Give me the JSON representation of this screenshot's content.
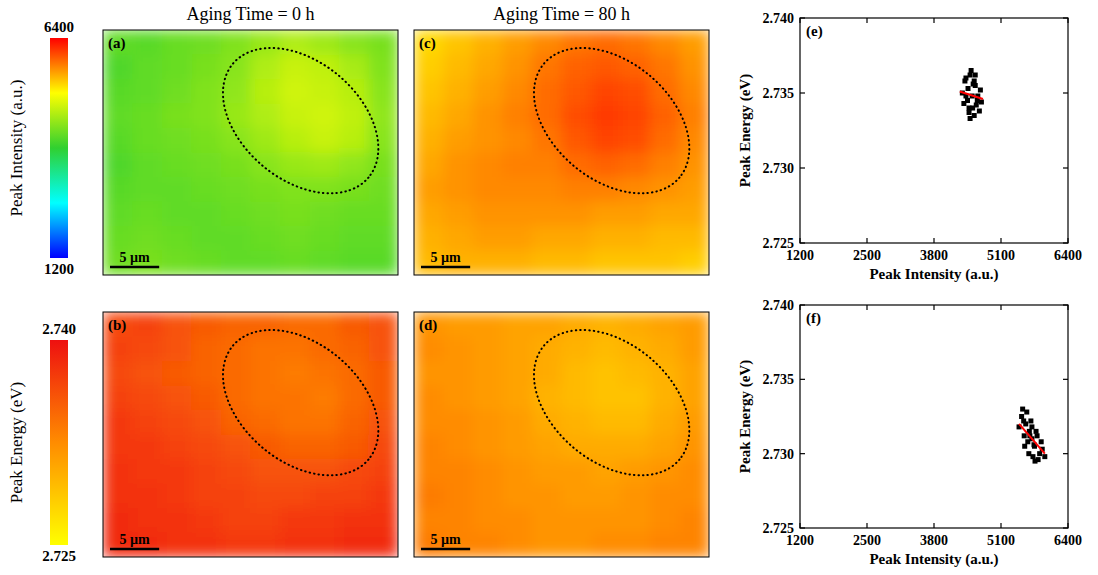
{
  "chart_data": [
    {
      "type": "colorbar",
      "label": "Peak Intensity (a.u.)",
      "zlim": [
        1200,
        6400
      ],
      "zticks": [
        1200,
        6400
      ],
      "colors": [
        "#0000ff",
        "#00ffff",
        "#30d030",
        "#ffff00",
        "#ff0000"
      ]
    },
    {
      "type": "colorbar",
      "label": "Peak Energy (eV)",
      "zlim": [
        2.725,
        2.74
      ],
      "zticks": [
        2.725,
        {
          "value": 2.74,
          "label": "2.740"
        }
      ],
      "colors": [
        "#ffff00",
        "#ff8c00",
        "#ee1010"
      ]
    },
    {
      "type": "heatmap",
      "label": "(a)",
      "title": "Aging Time = 0 h",
      "zlim": [
        1200,
        6400
      ],
      "colors": [
        "#0000ff",
        "#00ffff",
        "#30d030",
        "#ffff00",
        "#ff0000"
      ],
      "scale_bar": {
        "label": "5 µm",
        "length": 5
      },
      "width_um": 30,
      "cells": [
        [
          4100,
          4050,
          4150,
          4200,
          4300,
          4450,
          4600,
          4500,
          4350,
          4250
        ],
        [
          4000,
          4100,
          4150,
          4250,
          4350,
          4600,
          4750,
          4700,
          4550,
          4300
        ],
        [
          4050,
          4100,
          4200,
          4300,
          4400,
          4650,
          4800,
          4750,
          4650,
          4350
        ],
        [
          4100,
          4150,
          4250,
          4300,
          4450,
          4600,
          4750,
          4800,
          4700,
          4400
        ],
        [
          4050,
          4150,
          4200,
          4250,
          4350,
          4500,
          4650,
          4750,
          4650,
          4350
        ],
        [
          4000,
          4100,
          4150,
          4200,
          4250,
          4350,
          4450,
          4500,
          4400,
          4250
        ],
        [
          4050,
          4100,
          4100,
          4150,
          4200,
          4250,
          4300,
          4300,
          4250,
          4200
        ],
        [
          4100,
          4150,
          4100,
          4100,
          4150,
          4200,
          4250,
          4200,
          4150,
          4150
        ],
        [
          4150,
          4200,
          4150,
          4100,
          4100,
          4150,
          4200,
          4150,
          4100,
          4100
        ],
        [
          4200,
          4250,
          4200,
          4150,
          4100,
          4100,
          4150,
          4100,
          4050,
          4050
        ]
      ]
    },
    {
      "type": "heatmap",
      "label": "(b)",
      "zlim": [
        2.725,
        2.74
      ],
      "colors": [
        "#ffff00",
        "#ff8c00",
        "#ee1010"
      ],
      "scale_bar": {
        "label": "5 µm",
        "length": 5
      },
      "width_um": 30,
      "cells": [
        [
          2.7365,
          2.737,
          2.736,
          2.7355,
          2.735,
          2.735,
          2.7345,
          2.7345,
          2.7355,
          2.736
        ],
        [
          2.737,
          2.7365,
          2.736,
          2.735,
          2.7345,
          2.734,
          2.734,
          2.7345,
          2.735,
          2.736
        ],
        [
          2.7365,
          2.736,
          2.7355,
          2.735,
          2.7345,
          2.734,
          2.7335,
          2.734,
          2.7345,
          2.7355
        ],
        [
          2.737,
          2.7365,
          2.736,
          2.7355,
          2.7345,
          2.734,
          2.734,
          2.7335,
          2.7345,
          2.7355
        ],
        [
          2.7375,
          2.737,
          2.7365,
          2.736,
          2.735,
          2.7345,
          2.734,
          2.734,
          2.735,
          2.736
        ],
        [
          2.7375,
          2.7375,
          2.737,
          2.7365,
          2.736,
          2.7355,
          2.735,
          2.735,
          2.7355,
          2.7365
        ],
        [
          2.738,
          2.7375,
          2.7375,
          2.737,
          2.7365,
          2.736,
          2.736,
          2.736,
          2.7365,
          2.737
        ],
        [
          2.738,
          2.738,
          2.7375,
          2.737,
          2.737,
          2.7365,
          2.7365,
          2.737,
          2.737,
          2.7375
        ],
        [
          2.7385,
          2.738,
          2.738,
          2.7375,
          2.737,
          2.737,
          2.7375,
          2.7375,
          2.738,
          2.738
        ],
        [
          2.7385,
          2.7385,
          2.738,
          2.738,
          2.7375,
          2.7375,
          2.738,
          2.738,
          2.7385,
          2.7385
        ]
      ]
    },
    {
      "type": "heatmap",
      "label": "(c)",
      "title": "Aging Time = 80 h",
      "zlim": [
        1200,
        6400
      ],
      "colors": [
        "#0000ff",
        "#00ffff",
        "#30d030",
        "#ffff00",
        "#ff0000"
      ],
      "scale_bar": {
        "label": "5 µm",
        "length": 5
      },
      "width_um": 30,
      "cells": [
        [
          5300,
          5400,
          5500,
          5600,
          5700,
          5800,
          5850,
          5800,
          5700,
          5600
        ],
        [
          5350,
          5450,
          5550,
          5650,
          5800,
          5900,
          5950,
          5900,
          5800,
          5650
        ],
        [
          5400,
          5500,
          5600,
          5700,
          5850,
          5950,
          6050,
          6000,
          5850,
          5700
        ],
        [
          5450,
          5550,
          5650,
          5750,
          5850,
          6000,
          6100,
          6050,
          5900,
          5750
        ],
        [
          5500,
          5600,
          5650,
          5700,
          5800,
          5950,
          6050,
          6000,
          5850,
          5700
        ],
        [
          5550,
          5650,
          5700,
          5750,
          5750,
          5850,
          5900,
          5850,
          5750,
          5650
        ],
        [
          5600,
          5650,
          5700,
          5700,
          5700,
          5750,
          5750,
          5700,
          5650,
          5600
        ],
        [
          5550,
          5600,
          5650,
          5650,
          5650,
          5650,
          5600,
          5600,
          5550,
          5550
        ],
        [
          5500,
          5550,
          5600,
          5600,
          5550,
          5550,
          5500,
          5500,
          5450,
          5450
        ],
        [
          5450,
          5500,
          5500,
          5500,
          5450,
          5450,
          5400,
          5400,
          5400,
          5350
        ]
      ]
    },
    {
      "type": "heatmap",
      "label": "(d)",
      "zlim": [
        2.725,
        2.74
      ],
      "colors": [
        "#ffff00",
        "#ff8c00",
        "#ee1010"
      ],
      "scale_bar": {
        "label": "5 µm",
        "length": 5
      },
      "width_um": 30,
      "cells": [
        [
          2.732,
          2.7315,
          2.7315,
          2.731,
          2.731,
          2.7305,
          2.73,
          2.7305,
          2.731,
          2.7315
        ],
        [
          2.7325,
          2.732,
          2.7315,
          2.731,
          2.7305,
          2.73,
          2.7295,
          2.73,
          2.7305,
          2.7315
        ],
        [
          2.732,
          2.732,
          2.7315,
          2.731,
          2.7305,
          2.7295,
          2.729,
          2.7295,
          2.73,
          2.731
        ],
        [
          2.7325,
          2.732,
          2.7315,
          2.731,
          2.73,
          2.7295,
          2.729,
          2.729,
          2.73,
          2.731
        ],
        [
          2.7325,
          2.7325,
          2.732,
          2.7315,
          2.7305,
          2.73,
          2.7295,
          2.7295,
          2.7305,
          2.7315
        ],
        [
          2.733,
          2.7325,
          2.732,
          2.7315,
          2.731,
          2.7305,
          2.7305,
          2.7305,
          2.731,
          2.732
        ],
        [
          2.733,
          2.733,
          2.7325,
          2.732,
          2.7315,
          2.7315,
          2.731,
          2.7315,
          2.732,
          2.7325
        ],
        [
          2.7335,
          2.733,
          2.7325,
          2.732,
          2.732,
          2.7315,
          2.7315,
          2.732,
          2.7325,
          2.7325
        ],
        [
          2.733,
          2.733,
          2.7325,
          2.7325,
          2.732,
          2.732,
          2.732,
          2.732,
          2.7325,
          2.733
        ],
        [
          2.7335,
          2.733,
          2.733,
          2.7325,
          2.732,
          2.732,
          2.7325,
          2.7325,
          2.733,
          2.733
        ]
      ]
    },
    {
      "type": "scatter",
      "label": "(e)",
      "x_label": "Peak Intensity (a.u.)",
      "y_label": "Peak Energy (eV)",
      "xlim": [
        1200,
        6400
      ],
      "xticks": [
        1200,
        2500,
        3800,
        5100,
        6400
      ],
      "ylim": [
        2.725,
        2.74
      ],
      "yticks": [
        2.725,
        {
          "value": 2.73,
          "label": "2.730"
        },
        2.735,
        {
          "value": 2.74,
          "label": "2.740"
        }
      ],
      "series": [
        {
          "type": "scatter",
          "color": "#000000",
          "marker": "square",
          "x": [
            4350,
            4400,
            4450,
            4500,
            4550,
            4600,
            4650,
            4700,
            4380,
            4420,
            4480,
            4520,
            4580,
            4620,
            4680,
            4460,
            4540,
            4600,
            4500,
            4560,
            4640,
            4420,
            4720,
            4480,
            4580
          ],
          "values": [
            2.735,
            2.7358,
            2.7345,
            2.7362,
            2.734,
            2.7355,
            2.7348,
            2.7352,
            2.7343,
            2.736,
            2.7337,
            2.7365,
            2.7358,
            2.7342,
            2.7338,
            2.7353,
            2.7348,
            2.7362,
            2.7333,
            2.7356,
            2.7345,
            2.7348,
            2.7344,
            2.734,
            2.7335
          ]
        },
        {
          "type": "line",
          "color": "#ff0000",
          "x": [
            4300,
            4750
          ],
          "values": [
            2.7351,
            2.7346
          ]
        }
      ]
    },
    {
      "type": "scatter",
      "label": "(f)",
      "x_label": "Peak Intensity (a.u.)",
      "y_label": "Peak Energy (eV)",
      "xlim": [
        1200,
        6400
      ],
      "xticks": [
        1200,
        2500,
        3800,
        5100,
        6400
      ],
      "ylim": [
        2.725,
        2.74
      ],
      "yticks": [
        2.725,
        {
          "value": 2.73,
          "label": "2.730"
        },
        2.735,
        {
          "value": 2.74,
          "label": "2.740"
        }
      ],
      "series": [
        {
          "type": "scatter",
          "color": "#000000",
          "marker": "square",
          "x": [
            5450,
            5500,
            5550,
            5600,
            5650,
            5700,
            5750,
            5800,
            5850,
            5900,
            5520,
            5580,
            5620,
            5680,
            5720,
            5780,
            5820,
            5880,
            5560,
            5640,
            5700,
            5760,
            5540,
            5660,
            5740,
            5950
          ],
          "values": [
            2.7318,
            2.7325,
            2.7312,
            2.7328,
            2.7315,
            2.731,
            2.7305,
            2.7312,
            2.73,
            2.7303,
            2.733,
            2.732,
            2.7308,
            2.7322,
            2.7298,
            2.7315,
            2.7296,
            2.7308,
            2.7305,
            2.73,
            2.7318,
            2.7295,
            2.7322,
            2.7312,
            2.7306,
            2.7298
          ]
        },
        {
          "type": "line",
          "color": "#ff0000",
          "x": [
            5450,
            5950
          ],
          "values": [
            2.732,
            2.73
          ]
        }
      ]
    }
  ]
}
